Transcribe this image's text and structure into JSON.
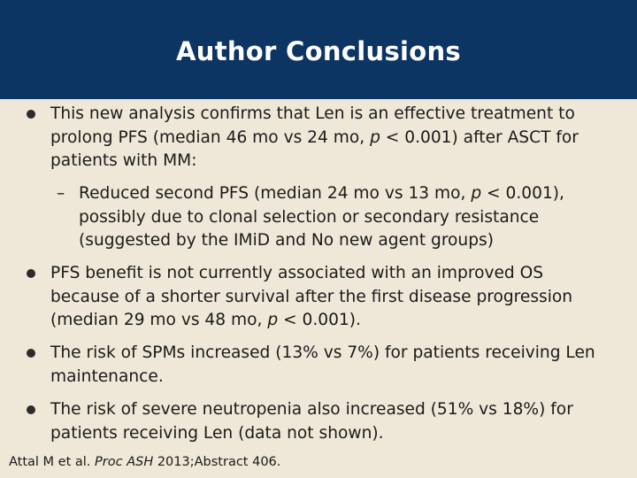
{
  "header": {
    "title": "Author Conclusions"
  },
  "bullets": [
    {
      "pre": "This new analysis confirms that Len is an effective treatment to prolong PFS (median 46 mo vs 24 mo, ",
      "italic": "p",
      "post": " < 0.001) after ASCT for patients with MM:"
    },
    {
      "pre": "Reduced second PFS (median 24 mo vs 13 mo, ",
      "italic": "p",
      "post": " < 0.001), possibly due to clonal selection or secondary resistance (suggested by the IMiD and No new agent groups)",
      "marker": "–"
    },
    {
      "pre": "PFS benefit is not currently associated with an improved OS because of a shorter survival after the first disease progression (median 29 mo vs 48 mo, ",
      "italic": "p",
      "post": " < 0.001)."
    },
    {
      "text": "The risk of SPMs increased (13% vs 7%) for patients receiving Len maintenance."
    },
    {
      "text": "The risk of severe neutropenia also increased (51% vs 18%) for patients receiving Len (data not shown)."
    }
  ],
  "citation": {
    "pre": "Attal M et al. ",
    "italic": "Proc ASH",
    "post": " 2013;Abstract 406."
  },
  "colors": {
    "header_bg": "#0d3563",
    "page_bg": "#efe8d8",
    "title": "#ffffff"
  }
}
